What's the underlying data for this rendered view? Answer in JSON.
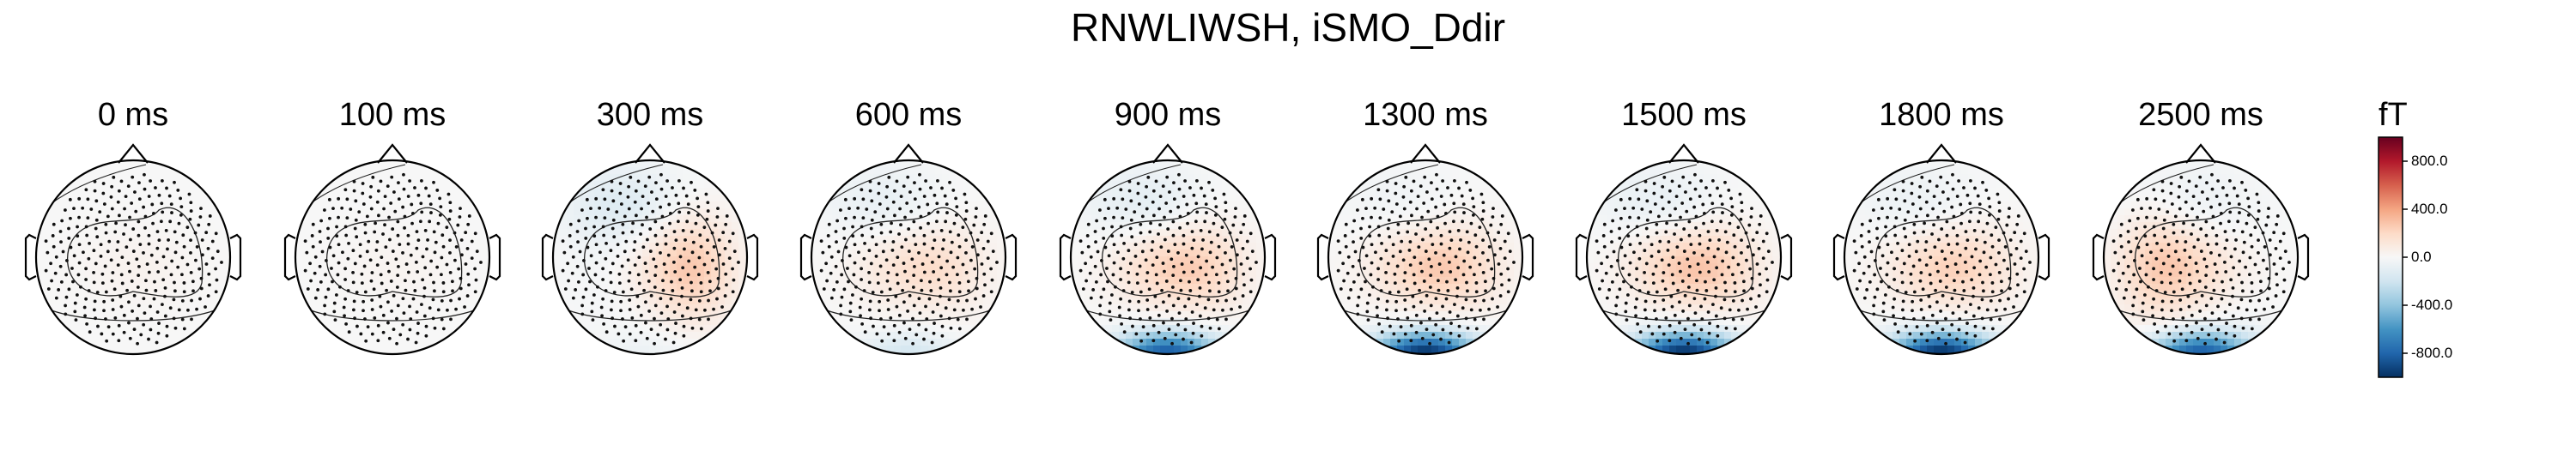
{
  "figure_title": "RNWLIWSH, iSMO_Ddir",
  "colorbar": {
    "unit": "fT",
    "vmin": -1000,
    "vmax": 1000,
    "ticks": [
      800.0,
      400.0,
      0.0,
      -400.0,
      -800.0
    ],
    "tick_labels": [
      "800.0",
      "400.0",
      "0.0",
      "-400.0",
      "-800.0"
    ],
    "colormap": "RdBu_r",
    "colors": [
      "#053061",
      "#2166ac",
      "#4393c3",
      "#92c5de",
      "#d1e5f0",
      "#f7f7f7",
      "#fddbc7",
      "#f4a582",
      "#d6604d",
      "#b2182b",
      "#67001f"
    ]
  },
  "chart_data": {
    "type": "heatmap",
    "subtype": "meg-topomap",
    "title": "RNWLIWSH, iSMO_Ddir",
    "unit": "fT",
    "times_ms": [
      0,
      100,
      300,
      600,
      900,
      1300,
      1500,
      1800,
      2500
    ],
    "panels": [
      {
        "label": "0 ms",
        "central_fT": 40,
        "left_temporal_fT": 0,
        "right_temporal_fT": 0,
        "occipital_fT": 0,
        "frontal_fT": 0
      },
      {
        "label": "100 ms",
        "central_fT": 30,
        "left_temporal_fT": 0,
        "right_temporal_fT": 0,
        "occipital_fT": 0,
        "frontal_fT": 0
      },
      {
        "label": "300 ms",
        "central_fT": 80,
        "left_temporal_fT": -40,
        "right_temporal_fT": 220,
        "occipital_fT": -60,
        "frontal_fT": -120
      },
      {
        "label": "600 ms",
        "central_fT": 150,
        "left_temporal_fT": 0,
        "right_temporal_fT": 60,
        "occipital_fT": -180,
        "frontal_fT": -80
      },
      {
        "label": "900 ms",
        "central_fT": 220,
        "left_temporal_fT": 0,
        "right_temporal_fT": 80,
        "occipital_fT": -850,
        "frontal_fT": -100
      },
      {
        "label": "1300 ms",
        "central_fT": 240,
        "left_temporal_fT": 0,
        "right_temporal_fT": 60,
        "occipital_fT": -1000,
        "frontal_fT": -40
      },
      {
        "label": "1500 ms",
        "central_fT": 260,
        "left_temporal_fT": 0,
        "right_temporal_fT": 60,
        "occipital_fT": -1000,
        "frontal_fT": -80
      },
      {
        "label": "1800 ms",
        "central_fT": 220,
        "left_temporal_fT": 0,
        "right_temporal_fT": 40,
        "occipital_fT": -1000,
        "frontal_fT": -60
      },
      {
        "label": "2500 ms",
        "central_fT": 150,
        "left_temporal_fT": 200,
        "right_temporal_fT": -40,
        "occipital_fT": -850,
        "frontal_fT": -80
      }
    ]
  }
}
